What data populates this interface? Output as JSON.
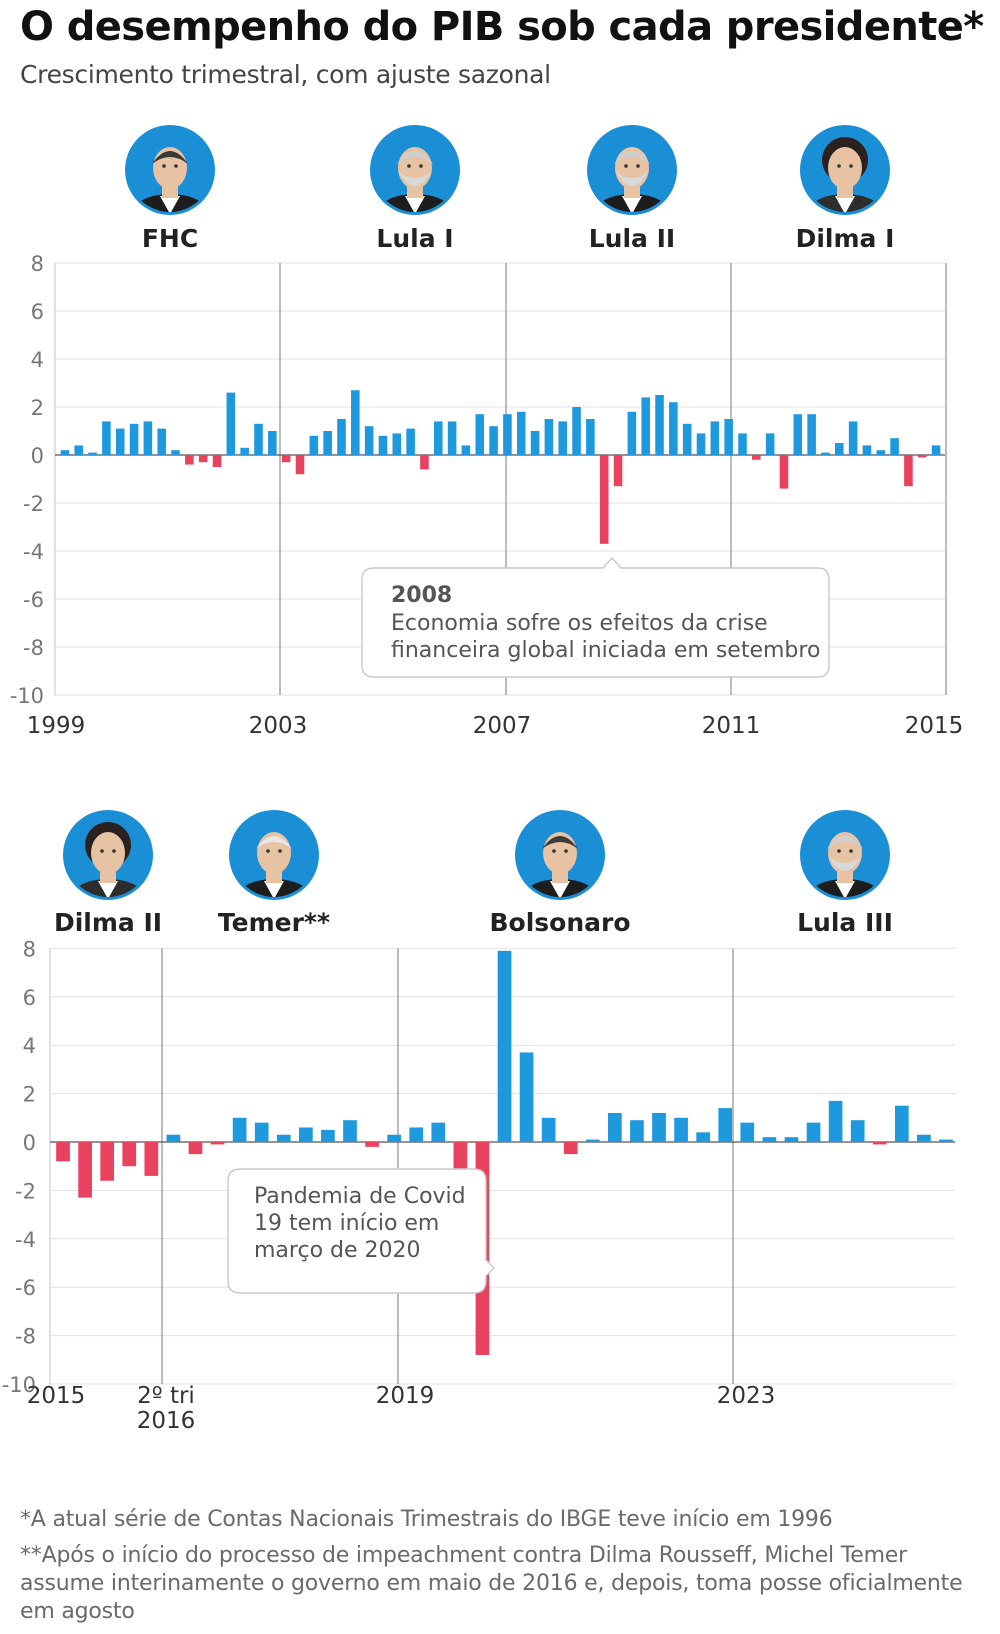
{
  "title": "O desempenho do PIB sob cada presidente*",
  "subtitle": "Crescimento trimestral, com ajuste sazonal",
  "colors": {
    "positive": "#1f99de",
    "negative": "#e8425e",
    "photo_ring": "#1a8fd6",
    "grid": "#e2e2e2",
    "divider": "#8f8f8f"
  },
  "chart_data": [
    {
      "type": "bar",
      "period": "1999–2015",
      "x_range": [
        "1999",
        "2015"
      ],
      "x_ticks": [
        "1999",
        "2003",
        "2007",
        "2011",
        "2015"
      ],
      "ylim": [
        -10,
        8
      ],
      "y_ticks": [
        "8",
        "6",
        "4",
        "2",
        "0",
        "-2",
        "-4",
        "-6",
        "-8",
        "-10"
      ],
      "grid": true,
      "presidents": [
        {
          "name": "FHC",
          "photo": "portrait-fhc"
        },
        {
          "name": "Lula I",
          "photo": "portrait-lula"
        },
        {
          "name": "Lula II",
          "photo": "portrait-lula"
        },
        {
          "name": "Dilma I",
          "photo": "portrait-dilma"
        }
      ],
      "values": [
        0.2,
        0.4,
        0.1,
        1.4,
        1.1,
        1.3,
        1.4,
        1.1,
        0.2,
        -0.4,
        -0.3,
        -0.5,
        2.6,
        0.3,
        1.3,
        1.0,
        -0.3,
        -0.8,
        0.8,
        1.0,
        1.5,
        2.7,
        1.2,
        0.8,
        0.9,
        1.1,
        -0.6,
        1.4,
        1.4,
        0.4,
        1.7,
        1.2,
        1.7,
        1.8,
        1.0,
        1.5,
        1.4,
        2.0,
        1.5,
        -3.7,
        -1.3,
        1.8,
        2.4,
        2.5,
        2.2,
        1.3,
        0.9,
        1.4,
        1.5,
        0.9,
        -0.2,
        0.9,
        -1.4,
        1.7,
        1.7,
        0.1,
        0.5,
        1.4,
        0.4,
        0.2,
        0.7,
        -1.3,
        -0.1,
        0.4
      ],
      "annotation": {
        "title": "2008",
        "text": [
          "Economia sofre os efeitos da crise",
          "financeira global iniciada em setembro"
        ]
      }
    },
    {
      "type": "bar",
      "period": "2015–2024",
      "x_range": [
        "2015",
        "2024"
      ],
      "x_ticks": [
        "2015",
        "2º tri 2016",
        "2019",
        "2023"
      ],
      "ylim": [
        -10,
        8
      ],
      "y_ticks": [
        "8",
        "6",
        "4",
        "2",
        "0",
        "-2",
        "-4",
        "-6",
        "-8",
        "-10"
      ],
      "grid": true,
      "presidents": [
        {
          "name": "Dilma II",
          "photo": "portrait-dilma"
        },
        {
          "name": "Temer**",
          "photo": "portrait-temer"
        },
        {
          "name": "Bolsonaro",
          "photo": "portrait-bolsonaro"
        },
        {
          "name": "Lula III",
          "photo": "portrait-lula"
        }
      ],
      "values": [
        -0.8,
        -2.3,
        -1.6,
        -1.0,
        -1.4,
        0.3,
        -0.5,
        -0.1,
        1.0,
        0.8,
        0.3,
        0.6,
        0.5,
        0.9,
        -0.2,
        0.3,
        0.6,
        0.8,
        -2.2,
        -8.8,
        7.9,
        3.7,
        1.0,
        -0.5,
        0.1,
        1.2,
        0.9,
        1.2,
        1.0,
        0.4,
        1.4,
        0.8,
        0.2,
        0.2,
        0.8,
        1.7,
        0.9,
        -0.1,
        1.5,
        0.3,
        0.1
      ],
      "annotation": {
        "title": "",
        "text": [
          "Pandemia de Covid",
          "19 tem início em",
          "março de 2020"
        ]
      }
    }
  ],
  "footnotes": [
    "*A atual série de Contas Nacionais Trimestrais do IBGE teve início em 1996",
    "**Após o início do processo de impeachment contra Dilma Rousseff, Michel Temer assume interinamente o governo em maio de 2016 e, depois, toma posse oficialmente em agosto"
  ]
}
